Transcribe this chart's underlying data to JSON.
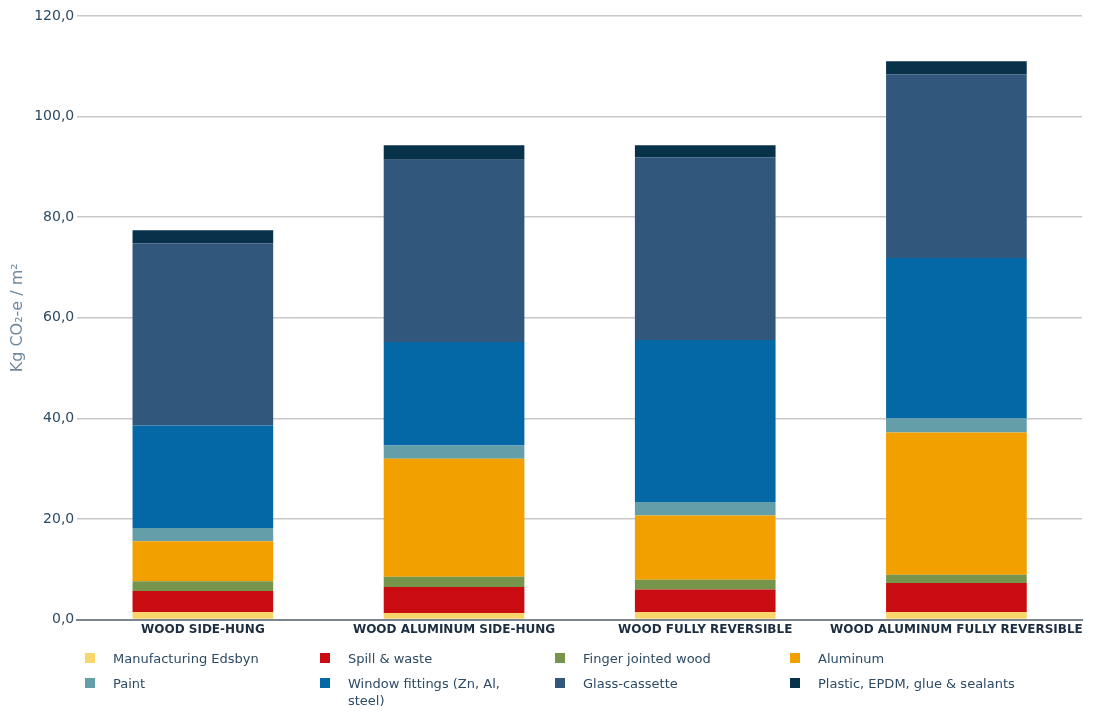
{
  "chart_data": {
    "type": "bar",
    "stacked": true,
    "ylabel": "Kg CO₂-e / m²",
    "categories": [
      "WOOD SIDE-HUNG",
      "WOOD ALUMINUM SIDE-HUNG",
      "WOOD FULLY REVERSIBLE",
      "WOOD ALUMINUM FULLY REVERSIBLE"
    ],
    "series": [
      {
        "name": "Manufacturing Edsbyn",
        "color": "#f9d66b",
        "values": [
          1.5,
          1.3,
          1.5,
          1.5
        ]
      },
      {
        "name": "Spill & waste",
        "color": "#c80c12",
        "values": [
          4.2,
          5.2,
          4.5,
          5.8
        ]
      },
      {
        "name": "Finger jointed wood",
        "color": "#76944a",
        "values": [
          1.9,
          2.0,
          1.9,
          1.6
        ]
      },
      {
        "name": "Aluminum",
        "color": "#f29f00",
        "values": [
          8.0,
          23.5,
          12.8,
          28.3
        ]
      },
      {
        "name": "Paint",
        "color": "#649ea9",
        "values": [
          2.6,
          2.6,
          2.7,
          2.8
        ]
      },
      {
        "name": "Window fittings (Zn, Al, steel)",
        "color": "#0568a6",
        "values": [
          20.4,
          20.6,
          32.2,
          31.9
        ]
      },
      {
        "name": "Glass-cassette",
        "color": "#31577c",
        "values": [
          36.2,
          36.2,
          36.3,
          36.5
        ]
      },
      {
        "name": "Plastic, EPDM, glue & sealants",
        "color": "#08314a",
        "values": [
          2.6,
          2.9,
          2.4,
          2.6
        ]
      }
    ],
    "ylim": [
      0,
      120
    ],
    "yticks": [
      {
        "value": 0,
        "label": "0,0"
      },
      {
        "value": 20,
        "label": "20,0"
      },
      {
        "value": 40,
        "label": "40,0"
      },
      {
        "value": 60,
        "label": "60,0"
      },
      {
        "value": 80,
        "label": "80,0"
      },
      {
        "value": 100,
        "label": "100,0"
      },
      {
        "value": 120,
        "label": "120,0"
      }
    ],
    "grid": "y",
    "legend": "bottom"
  }
}
